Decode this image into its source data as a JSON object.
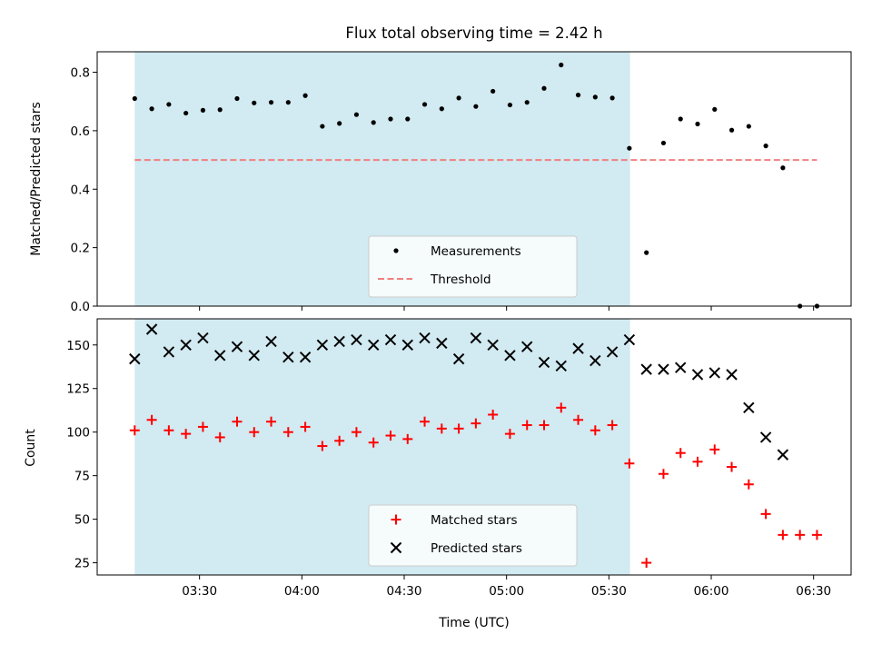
{
  "chart_data": {
    "type": "scatter",
    "title": "Flux total observing time = 2.42 h",
    "xlabel": "Time (UTC)",
    "x_ticks": [
      "03:30",
      "04:00",
      "04:30",
      "05:00",
      "05:30",
      "06:00",
      "06:30"
    ],
    "x_tick_minutes": [
      210,
      240,
      270,
      300,
      330,
      360,
      390
    ],
    "x_range_minutes": [
      180,
      401
    ],
    "shaded_span_minutes": [
      191,
      336.2
    ],
    "shaded_color": "#add8e6",
    "top": {
      "ylabel": "Matched/Predicted stars",
      "ylim": [
        0,
        0.87
      ],
      "y_ticks": [
        0.0,
        0.2,
        0.4,
        0.6,
        0.8
      ],
      "y_tick_labels": [
        "0.0",
        "0.2",
        "0.4",
        "0.6",
        "0.8"
      ],
      "legend_position": "lower-center",
      "series": [
        {
          "name": "Measurements",
          "color": "#000000",
          "marker": "dot",
          "x": [
            191,
            196,
            201,
            206,
            211,
            216,
            221,
            226,
            231,
            236,
            241,
            246,
            251,
            256,
            261,
            266,
            271,
            276,
            281,
            286,
            291,
            296,
            301,
            306,
            311,
            316,
            321,
            326,
            331,
            336,
            341,
            346,
            351,
            356,
            361,
            366,
            371,
            376,
            381,
            386,
            391
          ],
          "y": [
            0.71,
            0.675,
            0.69,
            0.66,
            0.67,
            0.672,
            0.71,
            0.695,
            0.697,
            0.697,
            0.72,
            0.615,
            0.625,
            0.655,
            0.628,
            0.64,
            0.64,
            0.69,
            0.675,
            0.712,
            0.683,
            0.735,
            0.688,
            0.697,
            0.745,
            0.825,
            0.722,
            0.715,
            0.712,
            0.54,
            0.183,
            0.558,
            0.64,
            0.623,
            0.673,
            0.602,
            0.615,
            0.548,
            0.473,
            0.0,
            0.0
          ]
        },
        {
          "name": "Threshold",
          "color": "#f08080",
          "style": "dashed",
          "x": [
            191,
            391
          ],
          "y": [
            0.5,
            0.5
          ]
        }
      ]
    },
    "bottom": {
      "ylabel": "Count",
      "ylim": [
        18,
        165
      ],
      "y_ticks": [
        25,
        50,
        75,
        100,
        125,
        150
      ],
      "y_tick_labels": [
        "25",
        "50",
        "75",
        "100",
        "125",
        "150"
      ],
      "legend_position": "lower-center",
      "series": [
        {
          "name": "Matched stars",
          "color": "#ff0000",
          "marker": "plus",
          "x": [
            191,
            196,
            201,
            206,
            211,
            216,
            221,
            226,
            231,
            236,
            241,
            246,
            251,
            256,
            261,
            266,
            271,
            276,
            281,
            286,
            291,
            296,
            301,
            306,
            311,
            316,
            321,
            326,
            331,
            336,
            341,
            346,
            351,
            356,
            361,
            366,
            371,
            376,
            381,
            386,
            391
          ],
          "y": [
            101,
            107,
            101,
            99,
            103,
            97,
            106,
            100,
            106,
            100,
            103,
            92,
            95,
            100,
            94,
            98,
            96,
            106,
            102,
            102,
            105,
            110,
            99,
            104,
            104,
            114,
            107,
            101,
            104,
            82,
            25,
            76,
            88,
            83,
            90,
            80,
            70,
            53,
            41,
            41,
            41
          ]
        },
        {
          "name": "Predicted stars",
          "color": "#000000",
          "marker": "x",
          "x": [
            191,
            196,
            201,
            206,
            211,
            216,
            221,
            226,
            231,
            236,
            241,
            246,
            251,
            256,
            261,
            266,
            271,
            276,
            281,
            286,
            291,
            296,
            301,
            306,
            311,
            316,
            321,
            326,
            331,
            336,
            341,
            346,
            351,
            356,
            361,
            366,
            371,
            376,
            381
          ],
          "y": [
            142,
            159,
            146,
            150,
            154,
            144,
            149,
            144,
            152,
            143,
            143,
            150,
            152,
            153,
            150,
            153,
            150,
            154,
            151,
            142,
            154,
            150,
            144,
            149,
            140,
            138,
            148,
            141,
            146,
            153,
            136,
            136,
            137,
            133,
            134,
            133,
            114,
            97,
            87
          ]
        }
      ]
    }
  }
}
